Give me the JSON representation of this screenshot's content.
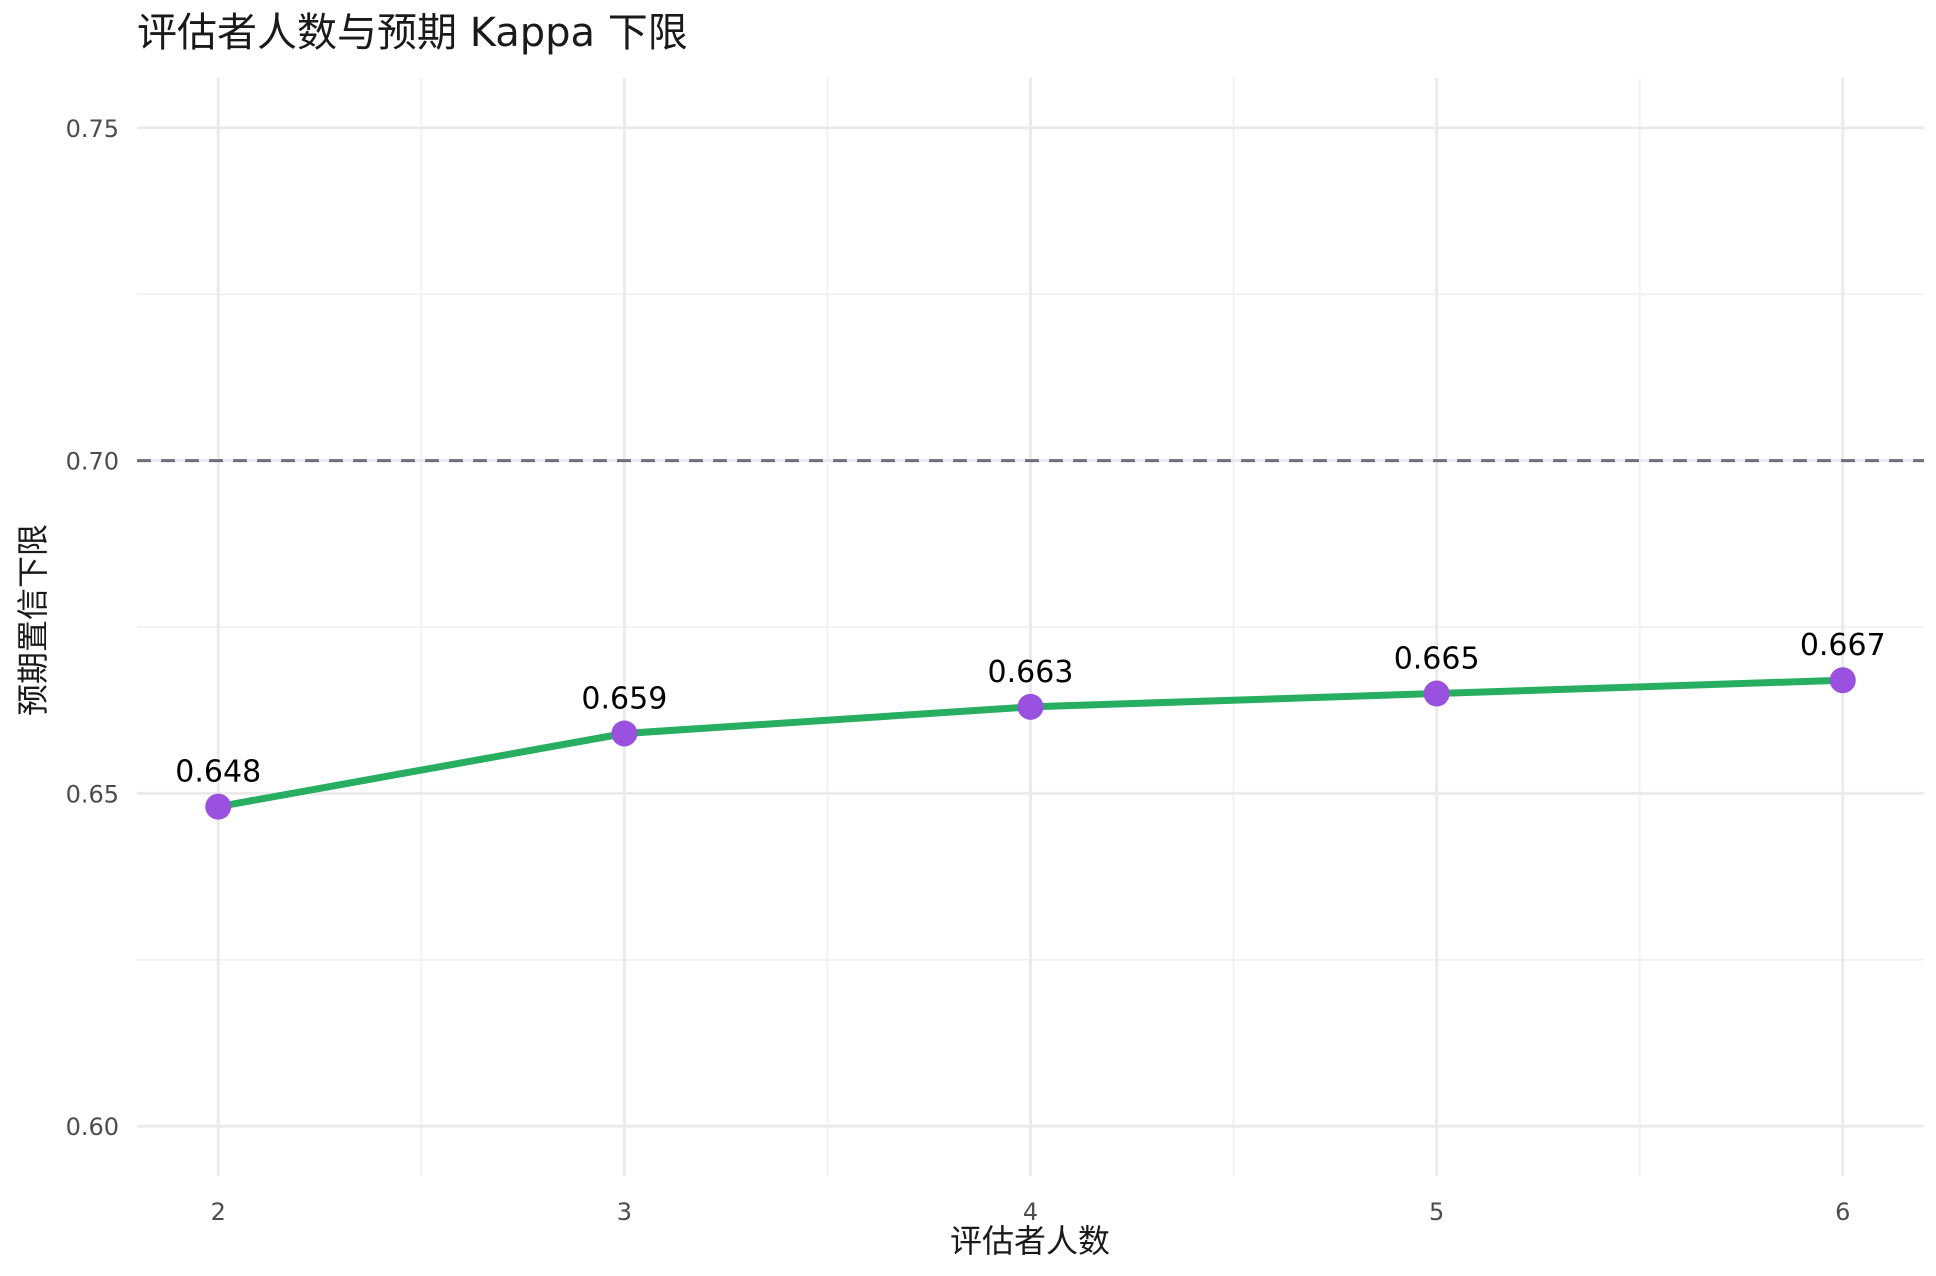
{
  "chart_data": {
    "type": "line",
    "title": "评估者人数与预期 Kappa 下限",
    "xlabel": "评估者人数",
    "ylabel": "预期置信下限",
    "x": [
      2,
      3,
      4,
      5,
      6
    ],
    "series": [
      {
        "values": [
          0.648,
          0.659,
          0.663,
          0.665,
          0.667
        ]
      }
    ],
    "data_labels": [
      "0.648",
      "0.659",
      "0.663",
      "0.665",
      "0.667"
    ],
    "xlim": [
      1.8,
      6.2
    ],
    "ylim": [
      0.5925,
      0.7575
    ],
    "x_ticks": [
      2,
      3,
      4,
      5,
      6
    ],
    "x_tick_labels": [
      "2",
      "3",
      "4",
      "5",
      "6"
    ],
    "y_ticks": [
      0.6,
      0.65,
      0.7,
      0.75
    ],
    "y_tick_labels": [
      "0.60",
      "0.65",
      "0.70",
      "0.75"
    ],
    "reference_line": {
      "y": 0.7,
      "style": "dashed",
      "color": "#6e6e80"
    },
    "line_color": "#27ae60",
    "point_color": "#9b51e0",
    "grid": true,
    "legend": "none"
  }
}
